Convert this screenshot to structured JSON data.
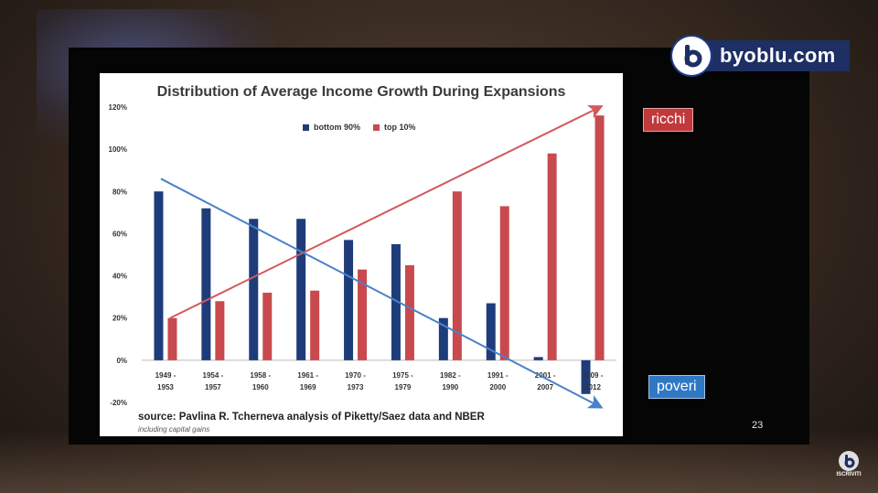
{
  "brand": {
    "name": "byoblu.com",
    "subscribe_label": "ISCRIVITI"
  },
  "slide": {
    "title": "Distribution of Average Income Growth During Expansions",
    "source": "source: Pavlina R. Tcherneva analysis of Piketty/Saez data and NBER",
    "note": "including capital gains",
    "page_number": "23"
  },
  "tags": {
    "rich": "ricchi",
    "poor": "poveri"
  },
  "colors": {
    "bottom": "#1f3c7a",
    "top": "#c84a4e",
    "arrow_red": "#d4585c",
    "arrow_blue": "#4a82c8"
  },
  "chart_data": {
    "type": "bar",
    "title": "Distribution of Average Income Growth During Expansions",
    "categories": [
      [
        "1949 -",
        "1953"
      ],
      [
        "1954 -",
        "1957"
      ],
      [
        "1958 -",
        "1960"
      ],
      [
        "1961 -",
        "1969"
      ],
      [
        "1970 -",
        "1973"
      ],
      [
        "1975 -",
        "1979"
      ],
      [
        "1982 -",
        "1990"
      ],
      [
        "1991 -",
        "2000"
      ],
      [
        "2001 -",
        "2007"
      ],
      [
        "2009 -",
        "2012"
      ]
    ],
    "series": [
      {
        "name": "bottom 90%",
        "values": [
          80,
          72,
          67,
          67,
          57,
          55,
          20,
          27,
          1.5,
          -16
        ]
      },
      {
        "name": "top 10%",
        "values": [
          20,
          28,
          32,
          33,
          43,
          45,
          80,
          73,
          98,
          116
        ]
      }
    ],
    "yticks": [
      "-20%",
      "0%",
      "20%",
      "40%",
      "60%",
      "80%",
      "100%",
      "120%"
    ],
    "ytick_values": [
      -20,
      0,
      20,
      40,
      60,
      80,
      100,
      120
    ],
    "ylim": [
      -20,
      120
    ],
    "legend_position": "top-center",
    "arrows": [
      {
        "name": "top trend",
        "from": [
          1,
          20
        ],
        "to": [
          10,
          120
        ]
      },
      {
        "name": "bottom trend",
        "from": [
          1,
          86
        ],
        "to": [
          10,
          -22
        ]
      }
    ]
  }
}
